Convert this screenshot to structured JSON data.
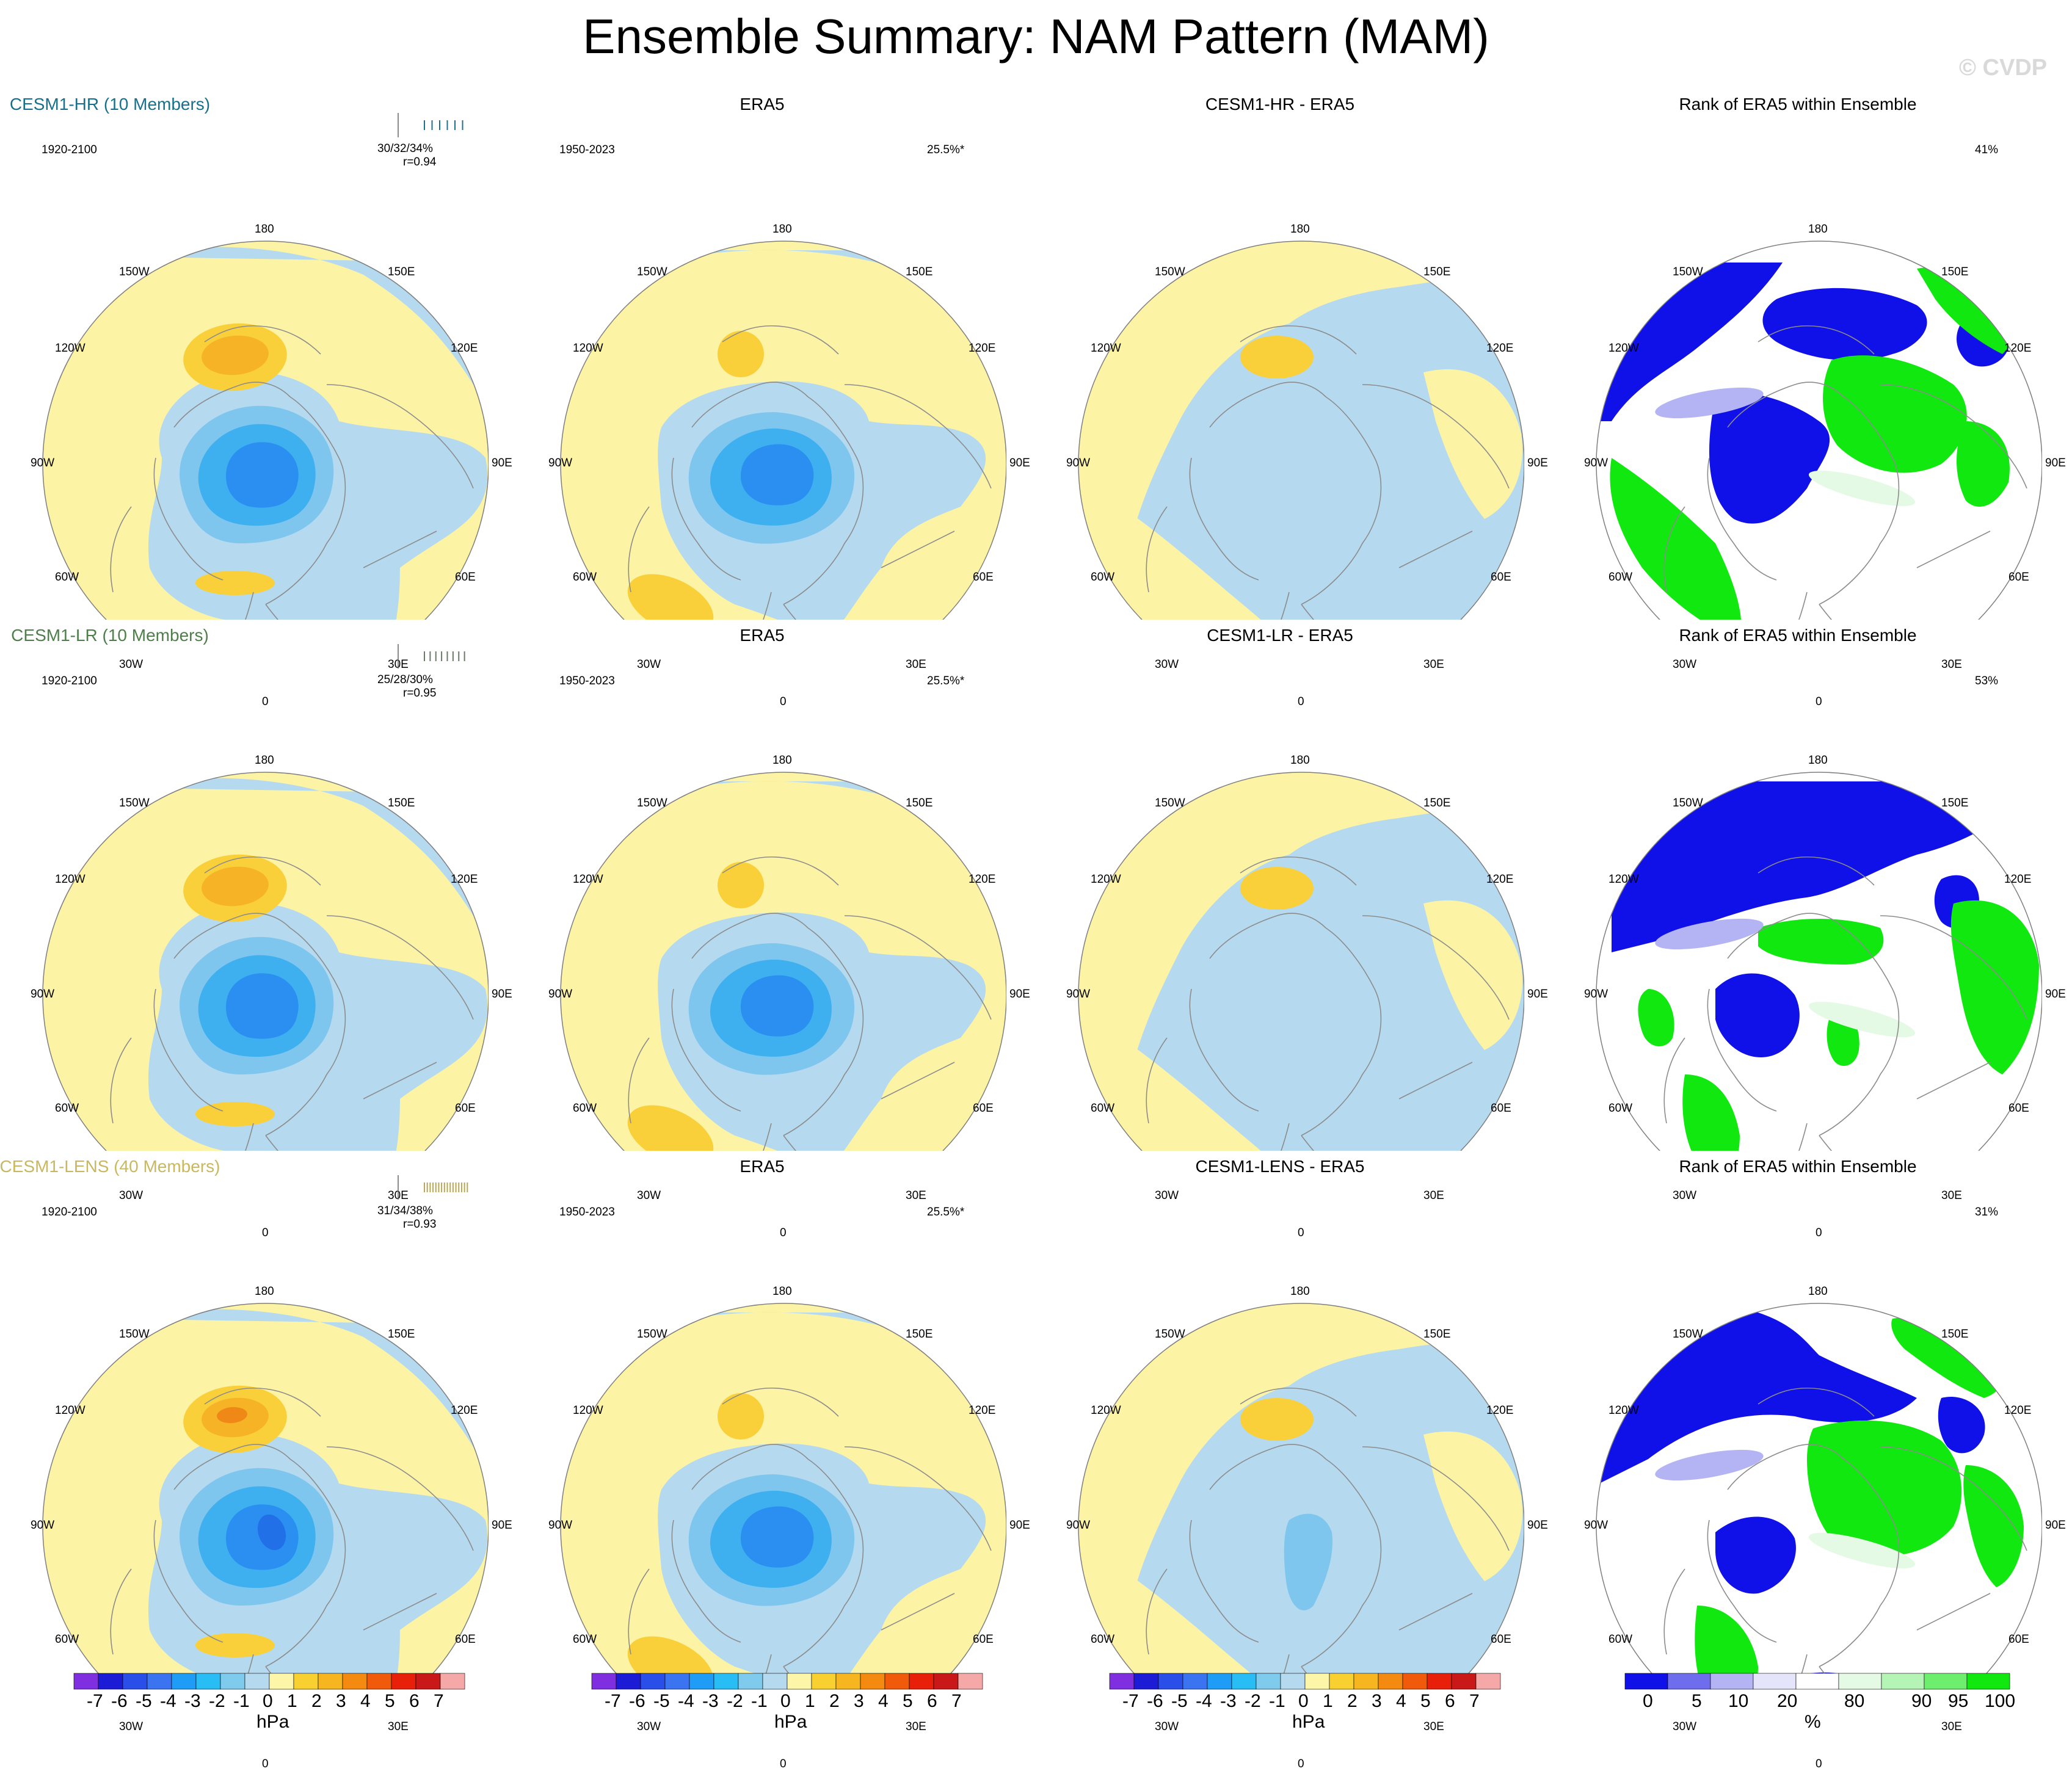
{
  "page": {
    "title": "Ensemble Summary: NAM Pattern (MAM)",
    "watermark": "© CVDP"
  },
  "rows": [
    {
      "model": {
        "title": "CESM1-HR (10 Members)",
        "period": "1920-2100",
        "stats": "30/32/34%",
        "corr": "r=0.94"
      },
      "obs": {
        "title": "ERA5",
        "period": "1950-2023",
        "pct": "25.5%*"
      },
      "diff": {
        "title": "CESM1-HR - ERA5"
      },
      "rank": {
        "title": "Rank of ERA5 within Ensemble",
        "pct": "41%"
      }
    },
    {
      "model": {
        "title": "CESM1-LR (10 Members)",
        "period": "1920-2100",
        "stats": "25/28/30%",
        "corr": "r=0.95"
      },
      "obs": {
        "title": "ERA5",
        "period": "1950-2023",
        "pct": "25.5%*"
      },
      "diff": {
        "title": "CESM1-LR - ERA5"
      },
      "rank": {
        "title": "Rank of ERA5 within Ensemble",
        "pct": "53%"
      }
    },
    {
      "model": {
        "title": "CESM1-LENS (40 Members)",
        "period": "1920-2100",
        "stats": "31/34/38%",
        "corr": "r=0.93"
      },
      "obs": {
        "title": "ERA5",
        "period": "1950-2023",
        "pct": "25.5%*"
      },
      "diff": {
        "title": "CESM1-LENS - ERA5"
      },
      "rank": {
        "title": "Rank of ERA5 within Ensemble",
        "pct": "31%"
      }
    }
  ],
  "map_labels": {
    "top": "180",
    "bottom": "0",
    "left_upper": "150W",
    "right_upper": "150E",
    "left_mid_upper": "120W",
    "right_mid_upper": "120E",
    "left_mid": "90W",
    "right_mid": "90E",
    "left_mid_lower": "60W",
    "right_mid_lower": "60E",
    "left_lower": "30W",
    "right_lower": "30E"
  },
  "colorbars": {
    "anomaly": {
      "labels": [
        "-7",
        "-6",
        "-5",
        "-4",
        "-3",
        "-2",
        "-1",
        "0",
        "1",
        "2",
        "3",
        "4",
        "5",
        "6",
        "7"
      ],
      "unit": "hPa",
      "colors": [
        "#7f2fe0",
        "#1c1cd6",
        "#2a4ee8",
        "#3a74f0",
        "#1f9cf5",
        "#29bdf5",
        "#7ecbee",
        "#b5d9ef",
        "#fdf6a8",
        "#f8d030",
        "#f7b520",
        "#f58a10",
        "#f05a0a",
        "#e8200a",
        "#c81818",
        "#f5a8a8"
      ]
    },
    "rank": {
      "labels": [
        "0",
        "5",
        "10",
        "20",
        "80",
        "90",
        "95",
        "100"
      ],
      "unit": "%",
      "colors": [
        "#1010e8",
        "#6d6dee",
        "#b4b4f4",
        "#e4e4fa",
        "#ffffff",
        "#e4fae4",
        "#b4f4b4",
        "#6dee6d",
        "#10e810"
      ]
    }
  }
}
